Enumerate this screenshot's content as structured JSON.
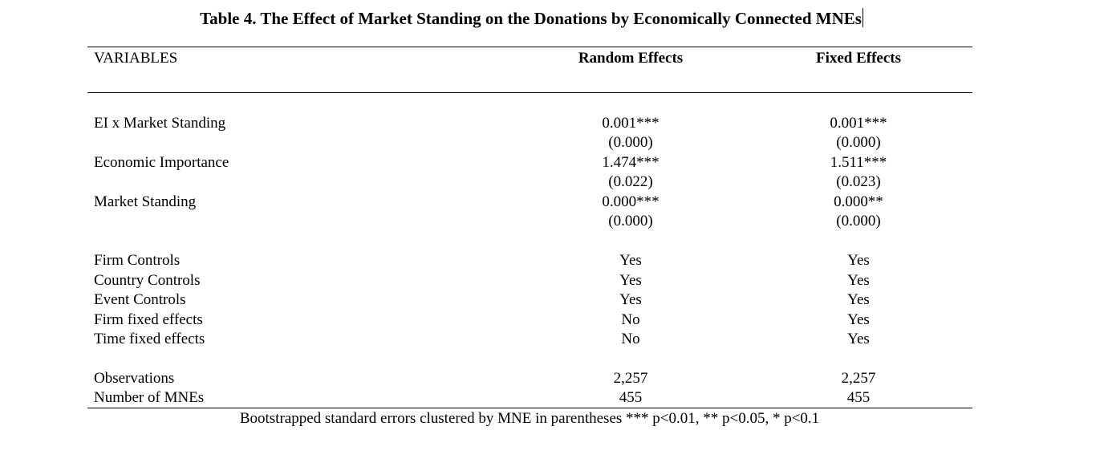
{
  "table": {
    "title": "Table 4. The Effect of Market Standing on the Donations by Economically Connected MNEs",
    "header": {
      "variables": "VARIABLES",
      "col1": "Random Effects",
      "col2": "Fixed Effects"
    },
    "coef_rows": [
      {
        "label": "EI x Market Standing",
        "col1": "0.001***",
        "col1_se": "(0.000)",
        "col2": "0.001***",
        "col2_se": "(0.000)"
      },
      {
        "label": "Economic Importance",
        "col1": "1.474***",
        "col1_se": "(0.022)",
        "col2": "1.511***",
        "col2_se": "(0.023)"
      },
      {
        "label": "Market Standing",
        "col1": "0.000***",
        "col1_se": "(0.000)",
        "col2": "0.000**",
        "col2_se": "(0.000)"
      }
    ],
    "control_rows": [
      {
        "label": "Firm Controls",
        "col1": "Yes",
        "col2": "Yes"
      },
      {
        "label": "Country Controls",
        "col1": "Yes",
        "col2": "Yes"
      },
      {
        "label": "Event Controls",
        "col1": "Yes",
        "col2": "Yes"
      },
      {
        "label": "Firm fixed effects",
        "col1": "No",
        "col2": "Yes"
      },
      {
        "label": "Time fixed effects",
        "col1": "No",
        "col2": "Yes"
      }
    ],
    "stat_rows": [
      {
        "label": "Observations",
        "col1": "2,257",
        "col2": "2,257"
      },
      {
        "label": "Number of MNEs",
        "col1": "455",
        "col2": "455"
      }
    ],
    "note": "Bootstrapped standard errors clustered by MNE in parentheses *** p<0.01, ** p<0.05, * p<0.1"
  }
}
